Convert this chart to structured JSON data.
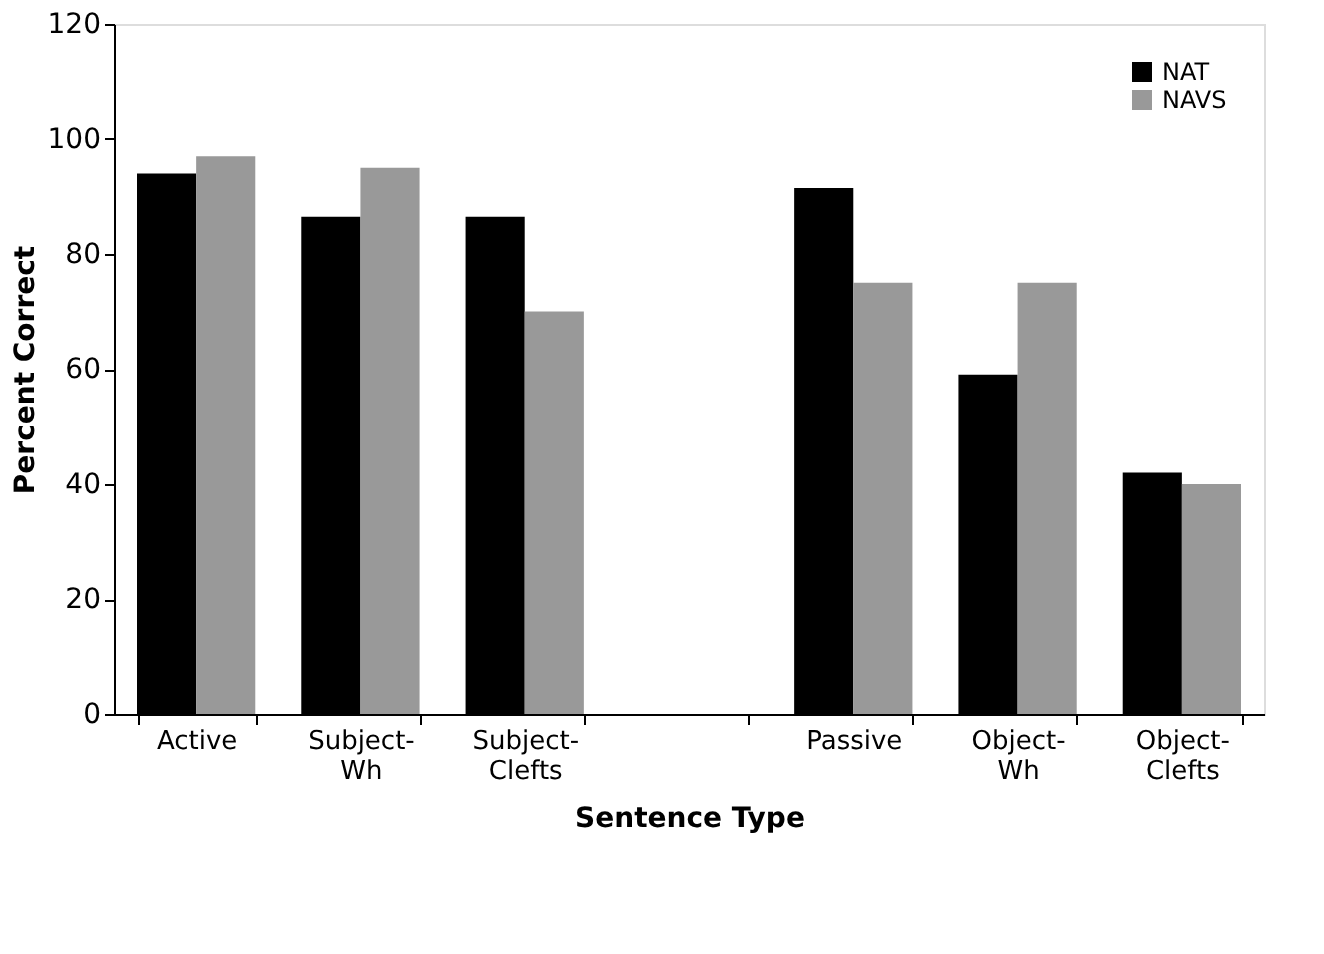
{
  "chart_data": {
    "type": "bar",
    "xlabel": "Sentence Type",
    "ylabel": "Percent Correct",
    "categories": [
      "Active",
      "Subject-Wh",
      "Subject-Clefts",
      null,
      "Passive",
      "Object-Wh",
      "Object-Clefts"
    ],
    "series": [
      {
        "name": "NAT",
        "color": "#000000",
        "values": [
          94,
          86.5,
          86.5,
          null,
          91.5,
          59,
          42
        ]
      },
      {
        "name": "NAVS",
        "color": "#999999",
        "values": [
          97,
          95,
          70,
          null,
          75,
          75,
          40
        ]
      }
    ],
    "ylim": [
      0,
      120
    ],
    "yticks": [
      0,
      20,
      40,
      60,
      80,
      100,
      120
    ],
    "grid": false,
    "legend": "top right"
  }
}
